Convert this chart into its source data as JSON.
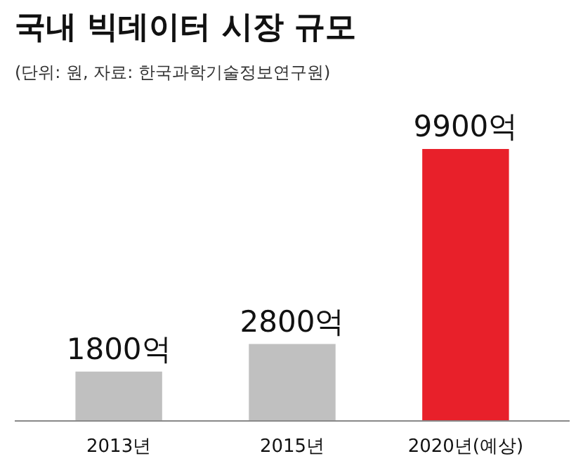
{
  "chart_data": {
    "type": "bar",
    "title": "국내 빅데이터 시장 규모",
    "subtitle": "(단위: 원, 자료: 한국과학기술정보연구원)",
    "categories": [
      "2013년",
      "2015년",
      "2020년(예상)"
    ],
    "values": [
      1800,
      2800,
      9900
    ],
    "colors": [
      "#c0c0c0",
      "#c0c0c0",
      "#e8202a"
    ],
    "value_labels": [
      "1800억",
      "2800억",
      "9900억"
    ]
  }
}
